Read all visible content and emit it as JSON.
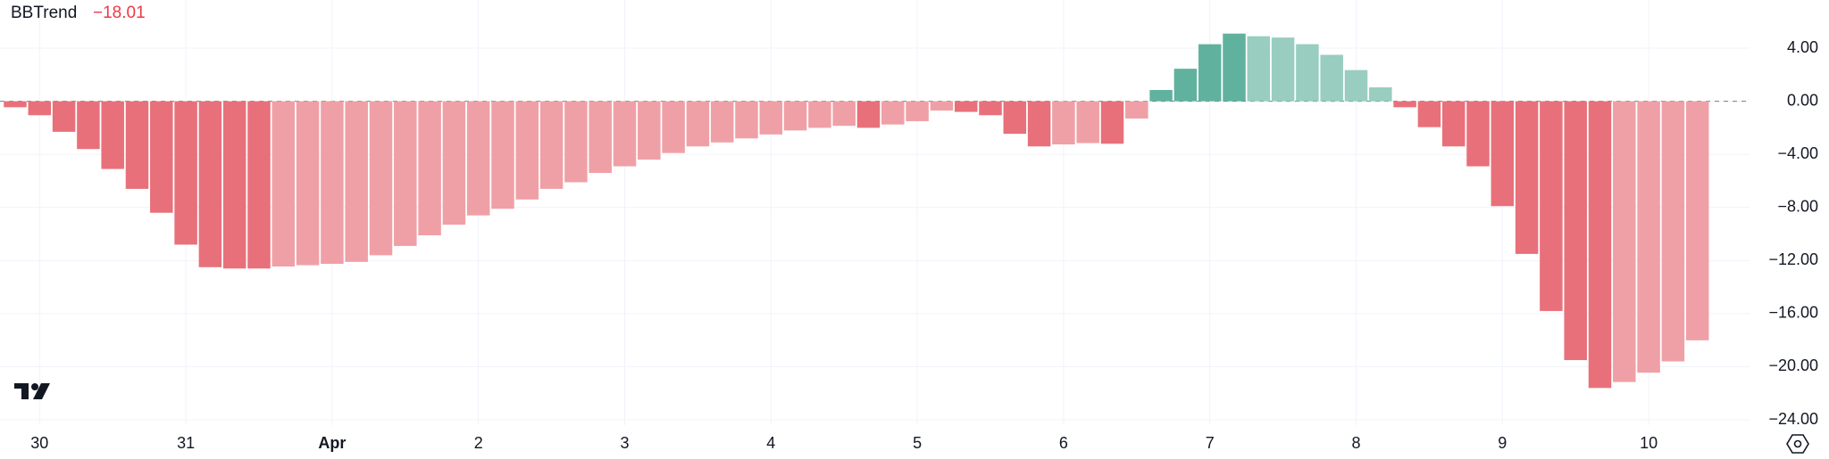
{
  "chart_data": {
    "type": "bar",
    "title": "BBTrend",
    "last_value": -18.01,
    "last_value_label": "−18.01",
    "last_value_color": "#f23645",
    "categories": [
      null,
      "30",
      null,
      null,
      null,
      null,
      null,
      "31",
      null,
      null,
      null,
      null,
      null,
      "Apr",
      null,
      null,
      null,
      null,
      null,
      "2",
      null,
      null,
      null,
      null,
      null,
      "3",
      null,
      null,
      null,
      null,
      null,
      "4",
      null,
      null,
      null,
      null,
      null,
      "5",
      null,
      null,
      null,
      null,
      null,
      "6",
      null,
      null,
      null,
      null,
      null,
      "7",
      null,
      null,
      null,
      null,
      null,
      "8",
      null,
      null,
      null,
      null,
      null,
      "9",
      null,
      null,
      null,
      null,
      null,
      "10",
      null,
      null
    ],
    "values": [
      -0.45,
      -1.05,
      -2.3,
      -3.6,
      -5.1,
      -6.6,
      -8.4,
      -10.8,
      -12.5,
      -12.6,
      -12.6,
      -12.45,
      -12.35,
      -12.25,
      -12.1,
      -11.6,
      -10.9,
      -10.1,
      -9.3,
      -8.6,
      -8.1,
      -7.4,
      -6.6,
      -6.1,
      -5.4,
      -4.9,
      -4.4,
      -3.9,
      -3.4,
      -3.1,
      -2.8,
      -2.5,
      -2.2,
      -2.0,
      -1.85,
      -2.0,
      -1.75,
      -1.5,
      -0.7,
      -0.8,
      -1.05,
      -2.45,
      -3.4,
      -3.25,
      -3.15,
      -3.2,
      -1.3,
      0.85,
      2.45,
      4.3,
      5.1,
      4.9,
      4.8,
      4.3,
      3.5,
      2.35,
      1.05,
      -0.45,
      -1.95,
      -3.4,
      -4.9,
      -7.9,
      -11.5,
      -15.8,
      -19.5,
      -21.6,
      -21.15,
      -20.45,
      -19.6,
      -18.01
    ],
    "colors": [
      "#e8707a",
      "#e8707a",
      "#e8707a",
      "#e8707a",
      "#e8707a",
      "#e8707a",
      "#e8707a",
      "#e8707a",
      "#e8707a",
      "#e8707a",
      "#e8707a",
      "#efa0a6",
      "#efa0a6",
      "#efa0a6",
      "#efa0a6",
      "#efa0a6",
      "#efa0a6",
      "#efa0a6",
      "#efa0a6",
      "#efa0a6",
      "#efa0a6",
      "#efa0a6",
      "#efa0a6",
      "#efa0a6",
      "#efa0a6",
      "#efa0a6",
      "#efa0a6",
      "#efa0a6",
      "#efa0a6",
      "#efa0a6",
      "#efa0a6",
      "#efa0a6",
      "#efa0a6",
      "#efa0a6",
      "#efa0a6",
      "#e8707a",
      "#efa0a6",
      "#efa0a6",
      "#efa0a6",
      "#e8707a",
      "#e8707a",
      "#e8707a",
      "#e8707a",
      "#efa0a6",
      "#efa0a6",
      "#e8707a",
      "#efa0a6",
      "#60b29f",
      "#60b29f",
      "#60b29f",
      "#60b29f",
      "#98cdc0",
      "#98cdc0",
      "#98cdc0",
      "#98cdc0",
      "#98cdc0",
      "#98cdc0",
      "#e8707a",
      "#e8707a",
      "#e8707a",
      "#e8707a",
      "#e8707a",
      "#e8707a",
      "#e8707a",
      "#e8707a",
      "#e8707a",
      "#efa0a6",
      "#efa0a6",
      "#efa0a6",
      "#efa0a6"
    ],
    "ylim": [
      -24.4,
      7.63
    ],
    "yticks": [
      {
        "value": 4,
        "label": "4.00"
      },
      {
        "value": 0,
        "label": "0.00"
      },
      {
        "value": -4,
        "label": "−4.00"
      },
      {
        "value": -8,
        "label": "−8.00"
      },
      {
        "value": -12,
        "label": "−12.00"
      },
      {
        "value": -16,
        "label": "−16.00"
      },
      {
        "value": -20,
        "label": "−20.00"
      },
      {
        "value": -24,
        "label": "−24.00"
      }
    ],
    "grid": true
  }
}
